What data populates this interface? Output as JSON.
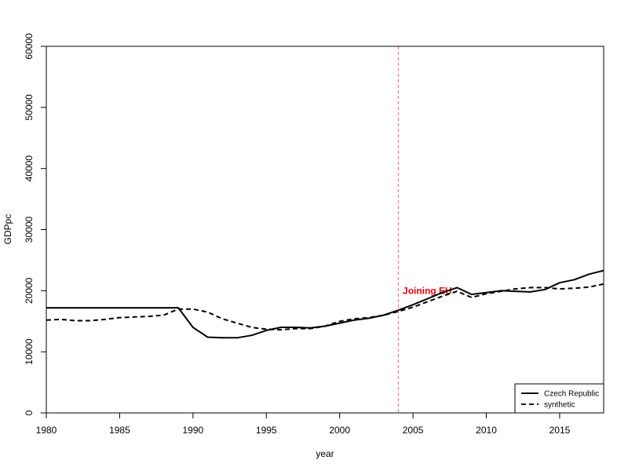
{
  "chart_data": {
    "type": "line",
    "title": "",
    "xlabel": "year",
    "ylabel": "GDPpc",
    "xlim": [
      1980,
      2018
    ],
    "ylim": [
      0,
      60000
    ],
    "x_ticks": [
      "1980",
      "1985",
      "1990",
      "1995",
      "2000",
      "2005",
      "2010",
      "2015"
    ],
    "y_ticks": [
      "0",
      "10000",
      "20000",
      "30000",
      "40000",
      "50000",
      "60000"
    ],
    "grid": false,
    "legend_position": "bottom-right",
    "series": [
      {
        "name": "Czech Republic",
        "style": "solid",
        "color": "#000000",
        "x": [
          1980,
          1981,
          1982,
          1983,
          1984,
          1985,
          1986,
          1987,
          1988,
          1989,
          1990,
          1991,
          1992,
          1993,
          1994,
          1995,
          1996,
          1997,
          1998,
          1999,
          2000,
          2001,
          2002,
          2003,
          2004,
          2005,
          2006,
          2007,
          2008,
          2009,
          2010,
          2011,
          2012,
          2013,
          2014,
          2015,
          2016,
          2017,
          2018
        ],
        "y": [
          17200,
          17200,
          17200,
          17200,
          17200,
          17200,
          17200,
          17200,
          17200,
          17200,
          14000,
          12400,
          12300,
          12300,
          12700,
          13500,
          14000,
          14000,
          13900,
          14200,
          14700,
          15200,
          15500,
          16000,
          16800,
          17700,
          18700,
          19700,
          20500,
          19400,
          19700,
          20000,
          19900,
          19800,
          20200,
          21300,
          21800,
          22700,
          23300
        ]
      },
      {
        "name": "synthetic",
        "style": "dashed",
        "color": "#000000",
        "x": [
          1980,
          1981,
          1982,
          1983,
          1984,
          1985,
          1986,
          1987,
          1988,
          1989,
          1990,
          1991,
          1992,
          1993,
          1994,
          1995,
          1996,
          1997,
          1998,
          1999,
          2000,
          2001,
          2002,
          2003,
          2004,
          2005,
          2006,
          2007,
          2008,
          2009,
          2010,
          2011,
          2012,
          2013,
          2014,
          2015,
          2016,
          2017,
          2018
        ],
        "y": [
          15200,
          15300,
          15100,
          15100,
          15300,
          15600,
          15700,
          15800,
          16000,
          17000,
          17000,
          16500,
          15400,
          14700,
          14000,
          13700,
          13600,
          13800,
          13800,
          14200,
          15000,
          15400,
          15600,
          16000,
          16600,
          17300,
          18200,
          19100,
          19900,
          18900,
          19500,
          19900,
          20300,
          20500,
          20500,
          20300,
          20400,
          20600,
          21100
        ]
      }
    ],
    "annotations": [
      {
        "type": "vline",
        "x": 2004,
        "color": "#ff6666",
        "style": "dashed"
      },
      {
        "type": "text",
        "text": "Joining EU",
        "x": 2004.3,
        "y": 20000,
        "color": "#e8000b"
      }
    ]
  }
}
